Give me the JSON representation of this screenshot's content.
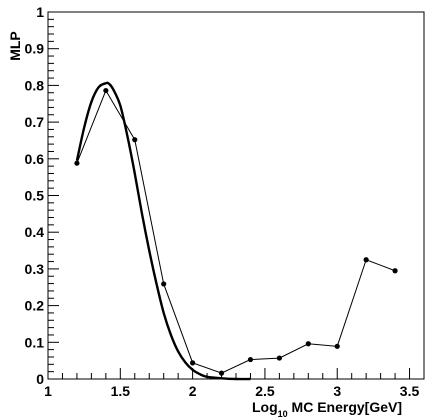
{
  "chart_data": {
    "type": "line",
    "ylabel": "MLP",
    "xlabel_parts": {
      "prefix": "Log",
      "subscript": "10",
      "suffix": " MC Energy[GeV]"
    },
    "xlim": [
      1.0,
      3.6
    ],
    "ylim": [
      0,
      1
    ],
    "x_ticks": [
      {
        "value": 1.0,
        "label": "1"
      },
      {
        "value": 1.5,
        "label": "1.5"
      },
      {
        "value": 2.0,
        "label": "2"
      },
      {
        "value": 2.5,
        "label": "2.5"
      },
      {
        "value": 3.0,
        "label": "3"
      },
      {
        "value": 3.5,
        "label": "3.5"
      }
    ],
    "y_ticks": [
      {
        "value": 0.0,
        "label": "0"
      },
      {
        "value": 0.1,
        "label": "0.1"
      },
      {
        "value": 0.2,
        "label": "0.2"
      },
      {
        "value": 0.3,
        "label": "0.3"
      },
      {
        "value": 0.4,
        "label": "0.4"
      },
      {
        "value": 0.5,
        "label": "0.5"
      },
      {
        "value": 0.6,
        "label": "0.6"
      },
      {
        "value": 0.7,
        "label": "0.7"
      },
      {
        "value": 0.8,
        "label": "0.8"
      },
      {
        "value": 0.9,
        "label": "0.9"
      },
      {
        "value": 1.0,
        "label": "1"
      }
    ],
    "grid": false,
    "series": [
      {
        "style": "markers-line",
        "x": [
          1.2,
          1.4,
          1.6,
          1.8,
          2.0,
          2.2,
          2.4,
          2.6,
          2.8,
          3.0,
          3.2,
          3.4
        ],
        "y": [
          0.588,
          0.786,
          0.652,
          0.259,
          0.044,
          0.016,
          0.053,
          0.057,
          0.096,
          0.089,
          0.325,
          0.295
        ]
      },
      {
        "style": "smooth-fit",
        "x": [
          1.2,
          1.25,
          1.3,
          1.35,
          1.4,
          1.42,
          1.45,
          1.5,
          1.55,
          1.6,
          1.65,
          1.7,
          1.75,
          1.8,
          1.85,
          1.9,
          1.95,
          2.0,
          2.05,
          2.1,
          2.2,
          2.3,
          2.4
        ],
        "y": [
          0.595,
          0.685,
          0.755,
          0.795,
          0.806,
          0.805,
          0.79,
          0.745,
          0.66,
          0.56,
          0.45,
          0.35,
          0.26,
          0.18,
          0.12,
          0.075,
          0.045,
          0.025,
          0.013,
          0.006,
          0.002,
          0.0,
          0.0
        ]
      }
    ],
    "colors": {
      "line": "#000000",
      "frame": "#000000",
      "background": "#ffffff"
    }
  }
}
